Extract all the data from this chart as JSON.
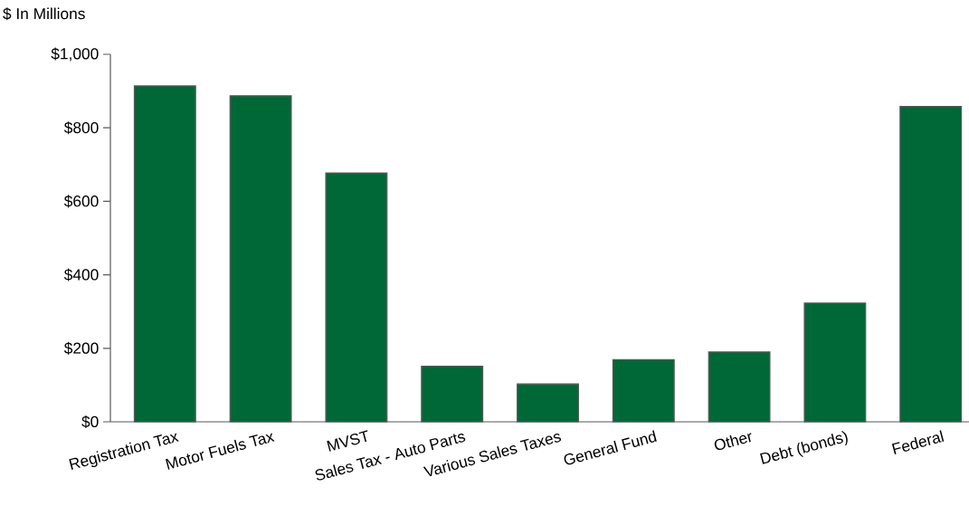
{
  "chart_data": {
    "type": "bar",
    "ylabel": "$ In Millions",
    "categories": [
      "Registration Tax",
      "Motor Fuels Tax",
      "MVST",
      "Sales Tax - Auto Parts",
      "Various Sales Taxes",
      "General Fund",
      "Other",
      "Debt (bonds)",
      "Federal"
    ],
    "values": [
      914,
      887,
      677,
      151,
      103,
      169,
      190,
      323,
      858
    ],
    "color": "#006837",
    "ylim": [
      0,
      1000
    ],
    "yticks": [
      {
        "value": 0,
        "label": "$0"
      },
      {
        "value": 200,
        "label": "$200"
      },
      {
        "value": 400,
        "label": "$400"
      },
      {
        "value": 600,
        "label": "$600"
      },
      {
        "value": 800,
        "label": "$800"
      },
      {
        "value": 1000,
        "label": "$1,000"
      }
    ],
    "grid": false
  }
}
